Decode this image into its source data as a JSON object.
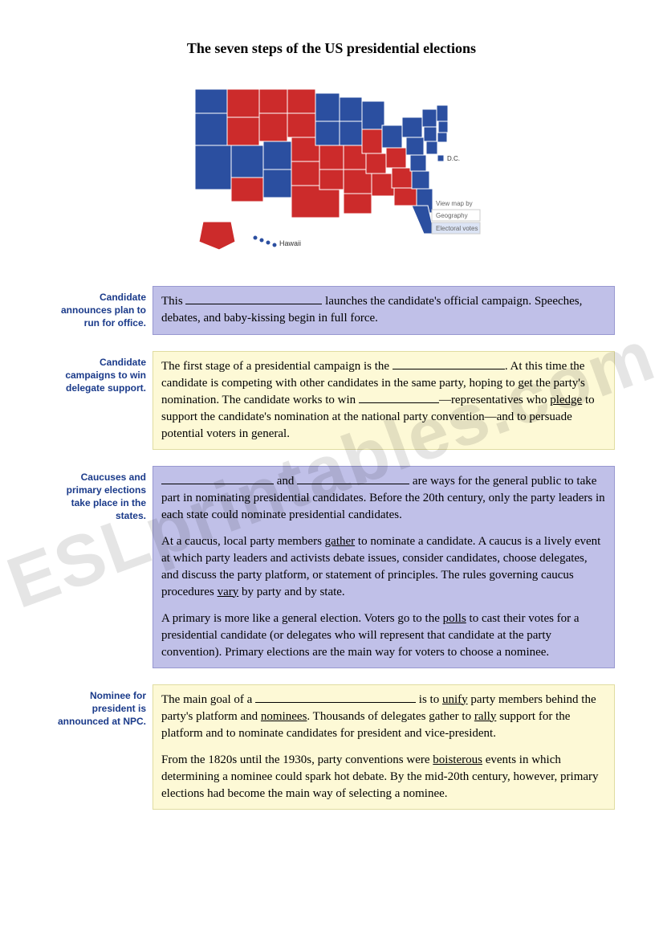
{
  "title": "The seven steps of the US presidential elections",
  "watermark": "ESLprintables.com",
  "map": {
    "red": "#cc2b2b",
    "blue": "#2b4fa0",
    "legend_title": "View map by",
    "legend_opt1": "Geography",
    "legend_opt2": "Electoral votes"
  },
  "steps": [
    {
      "heading": "Candidate announces plan to run for office.",
      "bg": "purple",
      "paras": [
        "This <span class=\"blank-long\"></span> launches the candidate's official campaign. Speeches, debates, and baby-kissing begin in full force."
      ]
    },
    {
      "heading": "Candidate campaigns to win delegate support.",
      "bg": "cream",
      "paras": [
        "The first stage of a presidential campaign is the <span class=\"blank-med\"></span>. At this time the candidate is competing with other candidates in the same party, hoping to get the party's nomination. The candidate works to win <span class=\"blank-short\"></span>—representatives who <span class=\"u\">pledge</span> to support the candidate's nomination at the national party convention—and to persuade potential voters in general."
      ]
    },
    {
      "heading": "Caucuses and primary elections take place in the states.",
      "bg": "purple",
      "paras": [
        "<span class=\"blank-med\"></span> and <span class=\"blank-med\"></span> are ways for the general public to take part in nominating presidential candidates. Before the 20th century, only the party leaders in each state could nominate presidential candidates.",
        "At a caucus, local party members <span class=\"u\">gather</span> to nominate a candidate. A caucus is a lively event at which party leaders and activists debate issues, consider candidates, choose delegates, and discuss the party platform, or statement of principles. The rules governing caucus procedures <span class=\"u\">vary</span> by party and by state.",
        "A primary is more like a general election. Voters go to the <span class=\"u\">polls</span> to cast their votes for a presidential candidate (or delegates who will represent that candidate at the party convention). Primary elections are the main way for voters to choose a nominee."
      ]
    },
    {
      "heading": "Nominee for president is announced at NPC.",
      "bg": "cream",
      "paras": [
        "The main goal of a <span class=\"blank-xl\"></span> is to <span class=\"u\">unify</span> party members behind the party's platform and <span class=\"u\">nominees</span>. Thousands of delegates gather to <span class=\"u\">rally</span> support for the platform and to nominate candidates for president and vice-president.",
        "From the 1820s until the 1930s, party conventions were <span class=\"u\">boisterous</span> events in which determining a nominee could spark hot debate. By the mid-20th century, however, primary elections had become the main way of selecting a nominee."
      ]
    }
  ]
}
